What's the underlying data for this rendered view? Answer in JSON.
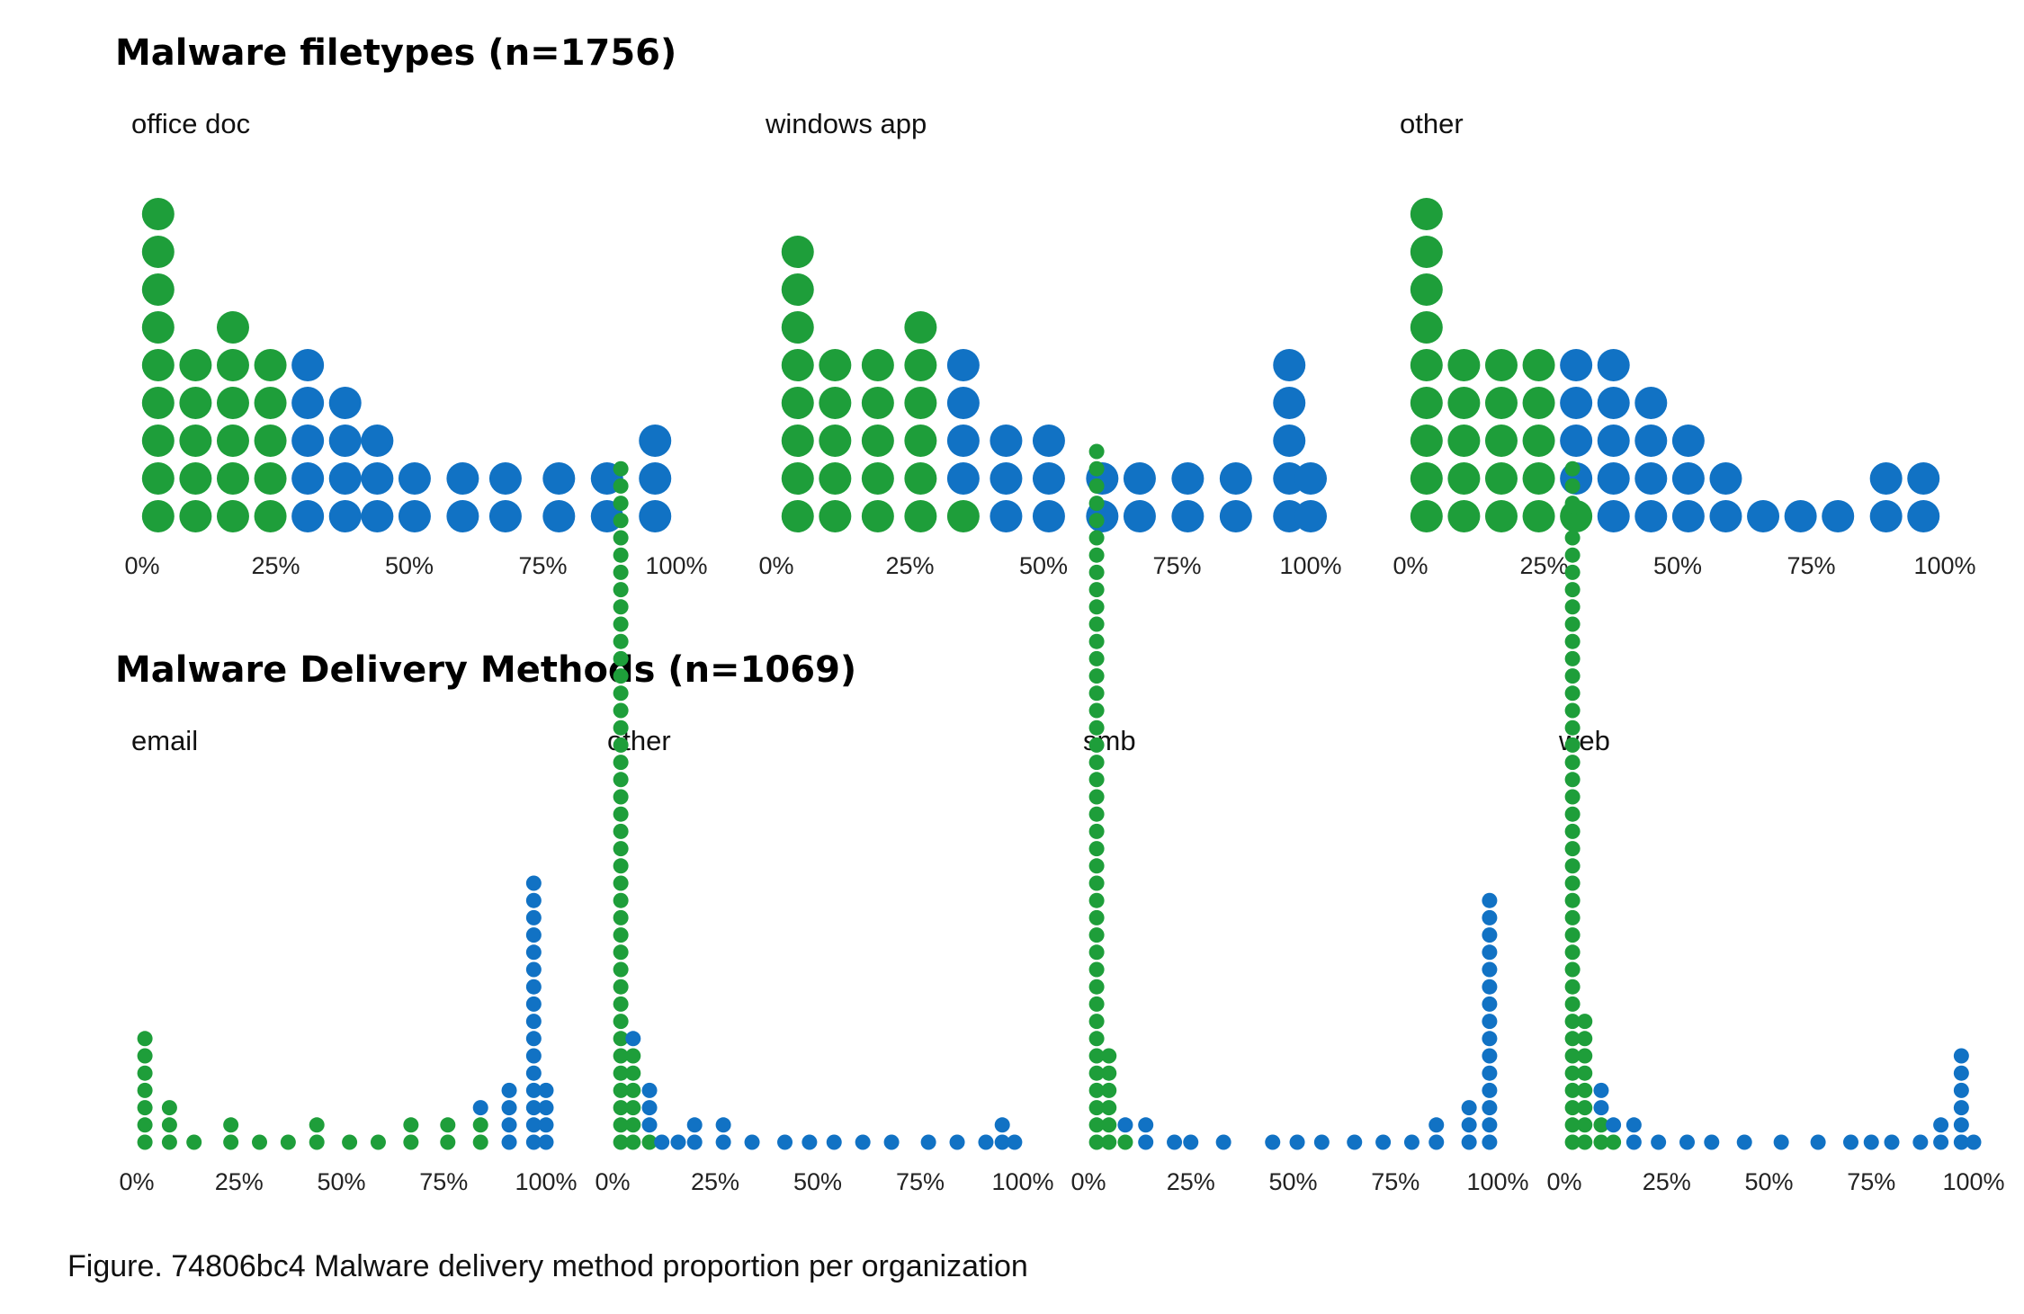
{
  "colors": {
    "below_threshold": "#1e9e3a",
    "above_threshold": "#1172c4"
  },
  "caption": "Figure. 74806bc4 Malware delivery method proportion per organization",
  "chart_data": [
    {
      "type": "dot-histogram",
      "title": "Malware filetypes (n=1756)",
      "tick_labels": [
        "0%",
        "25%",
        "50%",
        "75%",
        "100%"
      ],
      "panels": [
        {
          "name": "office doc",
          "x": [
            0.03,
            0.1,
            0.17,
            0.24,
            0.31,
            0.38,
            0.44,
            0.51,
            0.6,
            0.68,
            0.78,
            0.87,
            0.96
          ],
          "counts": [
            9,
            5,
            6,
            5,
            5,
            4,
            3,
            2,
            2,
            2,
            2,
            2,
            3
          ],
          "green_counts": [
            9,
            5,
            6,
            5,
            0,
            0,
            0,
            0,
            0,
            0,
            0,
            0,
            0
          ]
        },
        {
          "name": "windows app",
          "x": [
            0.04,
            0.11,
            0.19,
            0.27,
            0.35,
            0.43,
            0.51,
            0.61,
            0.68,
            0.77,
            0.86,
            0.96,
            1.0
          ],
          "counts": [
            8,
            5,
            5,
            6,
            5,
            3,
            3,
            2,
            2,
            2,
            2,
            5,
            2
          ],
          "green_counts": [
            8,
            5,
            5,
            6,
            1,
            0,
            0,
            0,
            0,
            0,
            0,
            0,
            0
          ]
        },
        {
          "name": "other",
          "x": [
            0.03,
            0.1,
            0.17,
            0.24,
            0.31,
            0.38,
            0.45,
            0.52,
            0.59,
            0.66,
            0.73,
            0.8,
            0.89,
            0.96
          ],
          "counts": [
            9,
            5,
            5,
            5,
            5,
            5,
            4,
            3,
            2,
            1,
            1,
            1,
            2,
            2
          ],
          "green_counts": [
            9,
            5,
            5,
            5,
            1,
            0,
            0,
            0,
            0,
            0,
            0,
            0,
            0,
            0
          ]
        }
      ]
    },
    {
      "type": "dot-histogram",
      "title": "Malware Delivery Methods (n=1069)",
      "tick_labels": [
        "0%",
        "25%",
        "50%",
        "75%",
        "100%"
      ],
      "panels": [
        {
          "name": "email",
          "x": [
            0.02,
            0.08,
            0.14,
            0.23,
            0.3,
            0.37,
            0.44,
            0.52,
            0.59,
            0.67,
            0.76,
            0.84,
            0.91,
            0.97,
            1.0
          ],
          "counts": [
            7,
            3,
            1,
            2,
            1,
            1,
            2,
            1,
            1,
            2,
            2,
            3,
            4,
            16,
            4
          ],
          "green_counts": [
            7,
            3,
            1,
            2,
            1,
            1,
            2,
            1,
            1,
            2,
            2,
            2,
            0,
            0,
            0
          ]
        },
        {
          "name": "other",
          "x": [
            0.02,
            0.05,
            0.09,
            0.12,
            0.16,
            0.2,
            0.27,
            0.34,
            0.42,
            0.48,
            0.54,
            0.61,
            0.68,
            0.77,
            0.84,
            0.91,
            0.95,
            0.98
          ],
          "counts": [
            40,
            7,
            4,
            1,
            1,
            2,
            2,
            1,
            1,
            1,
            1,
            1,
            1,
            1,
            1,
            1,
            2,
            1
          ],
          "green_counts": [
            40,
            6,
            1,
            0,
            0,
            0,
            0,
            0,
            0,
            0,
            0,
            0,
            0,
            0,
            0,
            0,
            0,
            0
          ]
        },
        {
          "name": "smb",
          "x": [
            0.02,
            0.05,
            0.09,
            0.14,
            0.21,
            0.25,
            0.33,
            0.45,
            0.51,
            0.57,
            0.65,
            0.72,
            0.79,
            0.85,
            0.93,
            0.98
          ],
          "counts": [
            41,
            6,
            2,
            2,
            1,
            1,
            1,
            1,
            1,
            1,
            1,
            1,
            1,
            2,
            3,
            15
          ],
          "green_counts": [
            41,
            6,
            1,
            0,
            0,
            0,
            0,
            0,
            0,
            0,
            0,
            0,
            0,
            0,
            0,
            0
          ]
        },
        {
          "name": "web",
          "x": [
            0.02,
            0.05,
            0.09,
            0.12,
            0.17,
            0.23,
            0.3,
            0.36,
            0.44,
            0.53,
            0.62,
            0.7,
            0.75,
            0.8,
            0.87,
            0.92,
            0.97,
            1.0
          ],
          "counts": [
            40,
            8,
            4,
            2,
            2,
            1,
            1,
            1,
            1,
            1,
            1,
            1,
            1,
            1,
            1,
            2,
            6,
            1
          ],
          "green_counts": [
            40,
            8,
            2,
            1,
            0,
            0,
            0,
            0,
            0,
            0,
            0,
            0,
            0,
            0,
            0,
            0,
            0,
            0
          ]
        }
      ]
    }
  ]
}
